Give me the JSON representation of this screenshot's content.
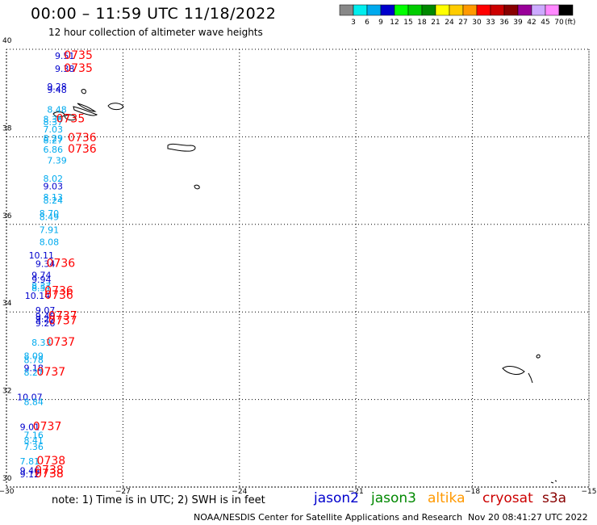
{
  "header": {
    "title": "00:00 – 11:59 UTC 11/18/2022",
    "subtitle": "12 hour collection of altimeter wave heights"
  },
  "colorbar": {
    "labels": [
      "3",
      "6",
      "9",
      "12",
      "15",
      "18",
      "21",
      "24",
      "27",
      "30",
      "33",
      "36",
      "39",
      "42",
      "45",
      "70"
    ],
    "unit": "(ft)",
    "colors": [
      "#888888",
      "#00eeee",
      "#00aaee",
      "#0000cc",
      "#00ff00",
      "#00cc00",
      "#008800",
      "#ffff00",
      "#ffcc00",
      "#ff9900",
      "#ff0000",
      "#cc0000",
      "#880000",
      "#990099",
      "#ccaaff",
      "#ff88ff",
      "#000000"
    ]
  },
  "footer": {
    "note": "note:  1) Time is in UTC;  2) SWH is in feet",
    "satellites": [
      {
        "name": "jason2",
        "color": "#0000cc"
      },
      {
        "name": "jason3",
        "color": "#008800"
      },
      {
        "name": "altika",
        "color": "#ff9900"
      },
      {
        "name": "cryosat",
        "color": "#cc0000"
      },
      {
        "name": "s3a",
        "color": "#880000"
      }
    ],
    "credit": "NOAA/NESDIS Center for Satellite Applications and Research",
    "timestamp": "Nov 20 08:41:27 UTC 2022"
  },
  "chart_data": {
    "type": "scatter",
    "xlim": [
      -30,
      -15
    ],
    "ylim": [
      30,
      40
    ],
    "x_ticks": [
      "−30",
      "−27",
      "−24",
      "−21",
      "−18",
      "−15"
    ],
    "y_ticks": [
      "30",
      "32",
      "34",
      "36",
      "38",
      "40"
    ],
    "grid": true,
    "points": [
      {
        "lon": -28.5,
        "lat": 39.78,
        "swh": "9.51",
        "color": "#0000cc"
      },
      {
        "lon": -28.5,
        "lat": 39.48,
        "swh": "9.38",
        "color": "#0000cc"
      },
      {
        "lon": -28.7,
        "lat": 39.08,
        "swh": "9.28",
        "color": "#0000cc"
      },
      {
        "lon": -28.7,
        "lat": 39.0,
        "swh": "9.48",
        "color": "#0000cc"
      },
      {
        "lon": -28.7,
        "lat": 38.55,
        "swh": "8.48",
        "color": "#00aaee"
      },
      {
        "lon": -28.8,
        "lat": 38.33,
        "swh": "8.36",
        "color": "#00aaee"
      },
      {
        "lon": -28.8,
        "lat": 38.27,
        "swh": "8.37",
        "color": "#00aaee"
      },
      {
        "lon": -28.8,
        "lat": 38.1,
        "swh": "7.03",
        "color": "#00aaee"
      },
      {
        "lon": -28.8,
        "lat": 37.9,
        "swh": "8.29",
        "color": "#00aaee"
      },
      {
        "lon": -28.8,
        "lat": 37.85,
        "swh": "8.27",
        "color": "#00aaee"
      },
      {
        "lon": -28.8,
        "lat": 37.64,
        "swh": "6.86",
        "color": "#00aaee"
      },
      {
        "lon": -28.7,
        "lat": 37.39,
        "swh": "7.39",
        "color": "#00aaee"
      },
      {
        "lon": -28.8,
        "lat": 36.97,
        "swh": "8.02",
        "color": "#00aaee"
      },
      {
        "lon": -28.8,
        "lat": 36.8,
        "swh": "9.03",
        "color": "#0000cc"
      },
      {
        "lon": -28.8,
        "lat": 36.55,
        "swh": "8.13",
        "color": "#00aaee"
      },
      {
        "lon": -28.8,
        "lat": 36.48,
        "swh": "8.24",
        "color": "#00aaee"
      },
      {
        "lon": -28.9,
        "lat": 36.18,
        "swh": "8.70",
        "color": "#00aaee"
      },
      {
        "lon": -28.9,
        "lat": 36.1,
        "swh": "8.49",
        "color": "#00aaee"
      },
      {
        "lon": -28.9,
        "lat": 35.8,
        "swh": "7.91",
        "color": "#00aaee"
      },
      {
        "lon": -28.9,
        "lat": 35.53,
        "swh": "8.08",
        "color": "#00aaee"
      },
      {
        "lon": -29.1,
        "lat": 35.22,
        "swh": "10.11",
        "color": "#0000cc"
      },
      {
        "lon": -29.0,
        "lat": 35.03,
        "swh": "9.34",
        "color": "#0000cc"
      },
      {
        "lon": -29.1,
        "lat": 34.77,
        "swh": "9.74",
        "color": "#0000cc"
      },
      {
        "lon": -29.1,
        "lat": 34.67,
        "swh": "9.94",
        "color": "#0000cc"
      },
      {
        "lon": -29.1,
        "lat": 34.52,
        "swh": "8.37",
        "color": "#00aaee"
      },
      {
        "lon": -29.1,
        "lat": 34.47,
        "swh": "8.51",
        "color": "#00aaee"
      },
      {
        "lon": -29.2,
        "lat": 34.3,
        "swh": "10.14",
        "color": "#0000cc"
      },
      {
        "lon": -29.0,
        "lat": 33.97,
        "swh": "9.07",
        "color": "#0000cc"
      },
      {
        "lon": -29.0,
        "lat": 33.83,
        "swh": "9.48",
        "color": "#0000cc"
      },
      {
        "lon": -29.0,
        "lat": 33.76,
        "swh": "9.22",
        "color": "#0000cc"
      },
      {
        "lon": -29.0,
        "lat": 33.67,
        "swh": "9.26",
        "color": "#0000cc"
      },
      {
        "lon": -29.1,
        "lat": 33.23,
        "swh": "8.33",
        "color": "#00aaee"
      },
      {
        "lon": -29.3,
        "lat": 32.92,
        "swh": "8.09",
        "color": "#00aaee"
      },
      {
        "lon": -29.3,
        "lat": 32.83,
        "swh": "8.78",
        "color": "#00aaee"
      },
      {
        "lon": -29.3,
        "lat": 32.65,
        "swh": "9.18",
        "color": "#0000cc"
      },
      {
        "lon": -29.3,
        "lat": 32.55,
        "swh": "8.27",
        "color": "#00aaee"
      },
      {
        "lon": -29.4,
        "lat": 31.98,
        "swh": "10.07",
        "color": "#0000cc"
      },
      {
        "lon": -29.3,
        "lat": 31.87,
        "swh": "8.84",
        "color": "#00aaee"
      },
      {
        "lon": -29.4,
        "lat": 31.3,
        "swh": "9.01",
        "color": "#0000cc"
      },
      {
        "lon": -29.3,
        "lat": 31.12,
        "swh": "7.16",
        "color": "#00aaee"
      },
      {
        "lon": -29.3,
        "lat": 31.0,
        "swh": "8.41",
        "color": "#00aaee"
      },
      {
        "lon": -29.3,
        "lat": 30.85,
        "swh": "7.36",
        "color": "#00aaee"
      },
      {
        "lon": -29.4,
        "lat": 30.52,
        "swh": "7.81",
        "color": "#00aaee"
      },
      {
        "lon": -29.4,
        "lat": 30.3,
        "swh": "9.46",
        "color": "#0000cc"
      },
      {
        "lon": -29.4,
        "lat": 30.22,
        "swh": "9.12",
        "color": "#0000cc"
      }
    ],
    "time_labels": [
      {
        "lon": -28.15,
        "lat": 39.78,
        "text": "0735"
      },
      {
        "lon": -28.15,
        "lat": 39.48,
        "text": "0735"
      },
      {
        "lon": -28.35,
        "lat": 38.33,
        "text": "0735"
      },
      {
        "lon": -28.05,
        "lat": 37.9,
        "text": "0736"
      },
      {
        "lon": -28.05,
        "lat": 37.64,
        "text": "0736"
      },
      {
        "lon": -28.6,
        "lat": 35.03,
        "text": "0736"
      },
      {
        "lon": -28.65,
        "lat": 34.4,
        "text": "0736"
      },
      {
        "lon": -28.65,
        "lat": 34.3,
        "text": "0736"
      },
      {
        "lon": -28.55,
        "lat": 33.83,
        "text": "0737"
      },
      {
        "lon": -28.55,
        "lat": 33.72,
        "text": "0737"
      },
      {
        "lon": -28.6,
        "lat": 33.23,
        "text": "0737"
      },
      {
        "lon": -28.85,
        "lat": 32.55,
        "text": "0737"
      },
      {
        "lon": -28.95,
        "lat": 31.3,
        "text": "0737"
      },
      {
        "lon": -28.85,
        "lat": 30.52,
        "text": "0738"
      },
      {
        "lon": -28.9,
        "lat": 30.3,
        "text": "0738"
      },
      {
        "lon": -28.9,
        "lat": 30.22,
        "text": "0738"
      }
    ],
    "time_label_color": "#ff0000"
  }
}
